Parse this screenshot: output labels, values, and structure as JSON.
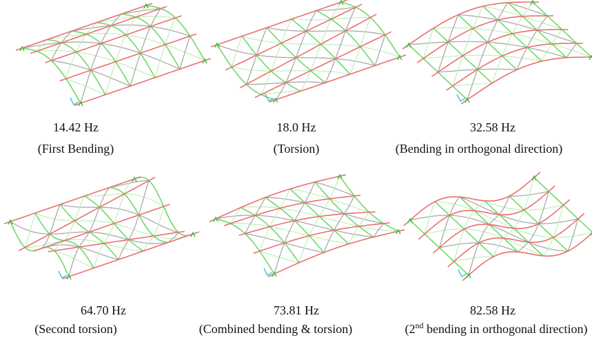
{
  "panels": [
    {
      "frequency": "14.42 Hz",
      "description": "(First Bending)"
    },
    {
      "frequency": "18.0 Hz",
      "description": "(Torsion)"
    },
    {
      "frequency": "32.58 Hz",
      "description": "(Bending in orthogonal direction)"
    },
    {
      "frequency": "64.70 Hz",
      "description": "(Second torsion)"
    },
    {
      "frequency": "73.81 Hz",
      "description": "(Combined bending & torsion)"
    },
    {
      "frequency": "82.58 Hz",
      "description": "(2",
      "superscript": "nd",
      "description_rest": " bending in orthogonal direction)"
    }
  ]
}
